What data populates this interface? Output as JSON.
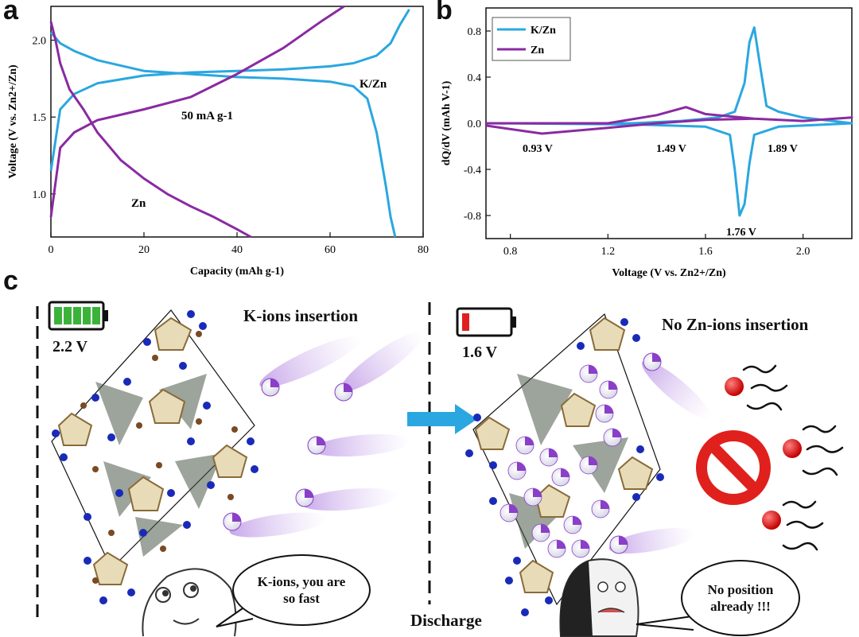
{
  "panel_labels": {
    "a": "a",
    "b": "b",
    "c": "c"
  },
  "chart_data": [
    {
      "type": "line",
      "panel": "a",
      "xlabel": "Capacity (mAh g-1)",
      "ylabel": "Voltage (V vs. Zn2+/Zn)",
      "xlim": [
        0,
        80
      ],
      "ylim": [
        0.72,
        2.22
      ],
      "xticks": [
        "0",
        "20",
        "40",
        "60",
        "80"
      ],
      "yticks": [
        "1.0",
        "1.5",
        "2.0"
      ],
      "annotations": [
        "K/Zn",
        "50 mA g-1",
        "Zn"
      ],
      "series": [
        {
          "name": "K/Zn charge",
          "color": "#2aa7e0",
          "x": [
            0,
            2,
            5,
            10,
            20,
            30,
            40,
            50,
            60,
            65,
            70,
            73,
            75,
            77
          ],
          "y": [
            1.15,
            1.55,
            1.65,
            1.72,
            1.77,
            1.79,
            1.8,
            1.81,
            1.83,
            1.85,
            1.9,
            1.98,
            2.1,
            2.2
          ]
        },
        {
          "name": "K/Zn discharge",
          "color": "#2aa7e0",
          "x": [
            0,
            2,
            5,
            10,
            20,
            30,
            40,
            50,
            60,
            65,
            68,
            70,
            72,
            73,
            74
          ],
          "y": [
            2.05,
            1.98,
            1.93,
            1.87,
            1.8,
            1.78,
            1.76,
            1.75,
            1.73,
            1.7,
            1.62,
            1.4,
            1.05,
            0.85,
            0.72
          ]
        },
        {
          "name": "Zn charge",
          "color": "#8a2aa2",
          "x": [
            0,
            2,
            5,
            10,
            20,
            30,
            40,
            50,
            58,
            63
          ],
          "y": [
            0.85,
            1.3,
            1.4,
            1.48,
            1.55,
            1.63,
            1.78,
            1.95,
            2.12,
            2.22
          ]
        },
        {
          "name": "Zn discharge",
          "color": "#8a2aa2",
          "x": [
            0,
            1,
            2,
            4,
            7,
            10,
            15,
            20,
            25,
            30,
            35,
            40,
            43
          ],
          "y": [
            2.12,
            2.0,
            1.85,
            1.68,
            1.55,
            1.4,
            1.22,
            1.1,
            1.0,
            0.92,
            0.85,
            0.77,
            0.72
          ]
        }
      ]
    },
    {
      "type": "line",
      "panel": "b",
      "xlabel": "Voltage (V vs. Zn2+/Zn)",
      "ylabel": "dQ/dV (mAh V-1)",
      "xlim": [
        0.7,
        2.2
      ],
      "ylim": [
        -1.0,
        1.0
      ],
      "xticks": [
        "0.8",
        "1.2",
        "1.6",
        "2.0"
      ],
      "yticks": [
        "-0.8",
        "-0.4",
        "0.0",
        "0.4",
        "0.8"
      ],
      "legend": [
        "K/Zn",
        "Zn"
      ],
      "annotations": [
        "0.93 V",
        "1.49 V",
        "1.89 V",
        "1.76 V"
      ],
      "series": [
        {
          "name": "K/Zn",
          "color": "#2aa7e0",
          "x": [
            0.7,
            1.0,
            1.3,
            1.5,
            1.65,
            1.72,
            1.76,
            1.78,
            1.8,
            1.82,
            1.85,
            1.9,
            2.0,
            2.2,
            2.2,
            2.0,
            1.9,
            1.8,
            1.78,
            1.76,
            1.74,
            1.72,
            1.7,
            1.6,
            1.3,
            0.7
          ],
          "y": [
            0.0,
            0.0,
            0.0,
            0.02,
            0.05,
            0.1,
            0.35,
            0.7,
            0.83,
            0.55,
            0.15,
            0.1,
            0.05,
            0.0,
            0.0,
            -0.02,
            -0.03,
            -0.1,
            -0.35,
            -0.7,
            -0.8,
            -0.4,
            -0.1,
            -0.03,
            -0.01,
            0.0
          ]
        },
        {
          "name": "Zn",
          "color": "#8a2aa2",
          "x": [
            0.7,
            0.93,
            1.2,
            1.4,
            1.52,
            1.6,
            1.8,
            2.0,
            2.2,
            2.2,
            2.0,
            1.8,
            1.6,
            1.4,
            1.2,
            0.93,
            0.7
          ],
          "y": [
            0.0,
            0.0,
            0.0,
            0.07,
            0.14,
            0.08,
            0.04,
            0.02,
            0.05,
            0.05,
            0.02,
            0.04,
            0.03,
            0.0,
            -0.04,
            -0.09,
            -0.02
          ]
        }
      ]
    }
  ],
  "panel_c": {
    "left_voltage": "2.2 V",
    "left_title": "K-ions insertion",
    "left_speech": "K-ions, you are so fast",
    "right_voltage": "1.6 V",
    "right_title": "No Zn-ions insertion",
    "right_speech": "No position already !!!",
    "arrow_label": "Discharge",
    "colors": {
      "arrow": "#2aa7e0",
      "battery_full": "#3bb33b",
      "battery_low": "#e02020",
      "zn_ion": "#e01a1a",
      "prohibited": "#e0201c",
      "k_ion": "#8a3fc8"
    }
  }
}
